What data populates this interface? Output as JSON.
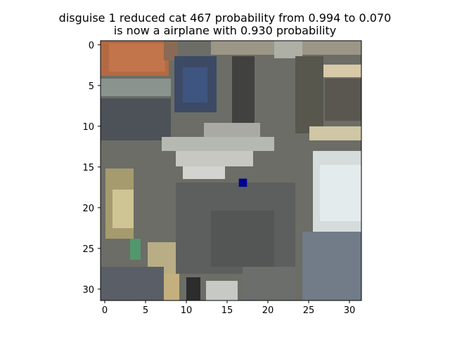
{
  "figure": {
    "title_line1": "disguise 1 reduced cat 467 probability from 0.994 to 0.070",
    "title_line2": "is now a airplane with 0.930 probability"
  },
  "image": {
    "kind": "32x32 low-resolution photo, perturbed pixel marked in dark blue",
    "grid_size": 32,
    "marked_pixel": {
      "col": 17,
      "row": 17,
      "color": "#000090"
    }
  },
  "axes": {
    "x_ticks": [
      "0",
      "5",
      "10",
      "15",
      "20",
      "25",
      "30"
    ],
    "y_ticks": [
      "0",
      "5",
      "10",
      "15",
      "20",
      "25",
      "30"
    ]
  }
}
